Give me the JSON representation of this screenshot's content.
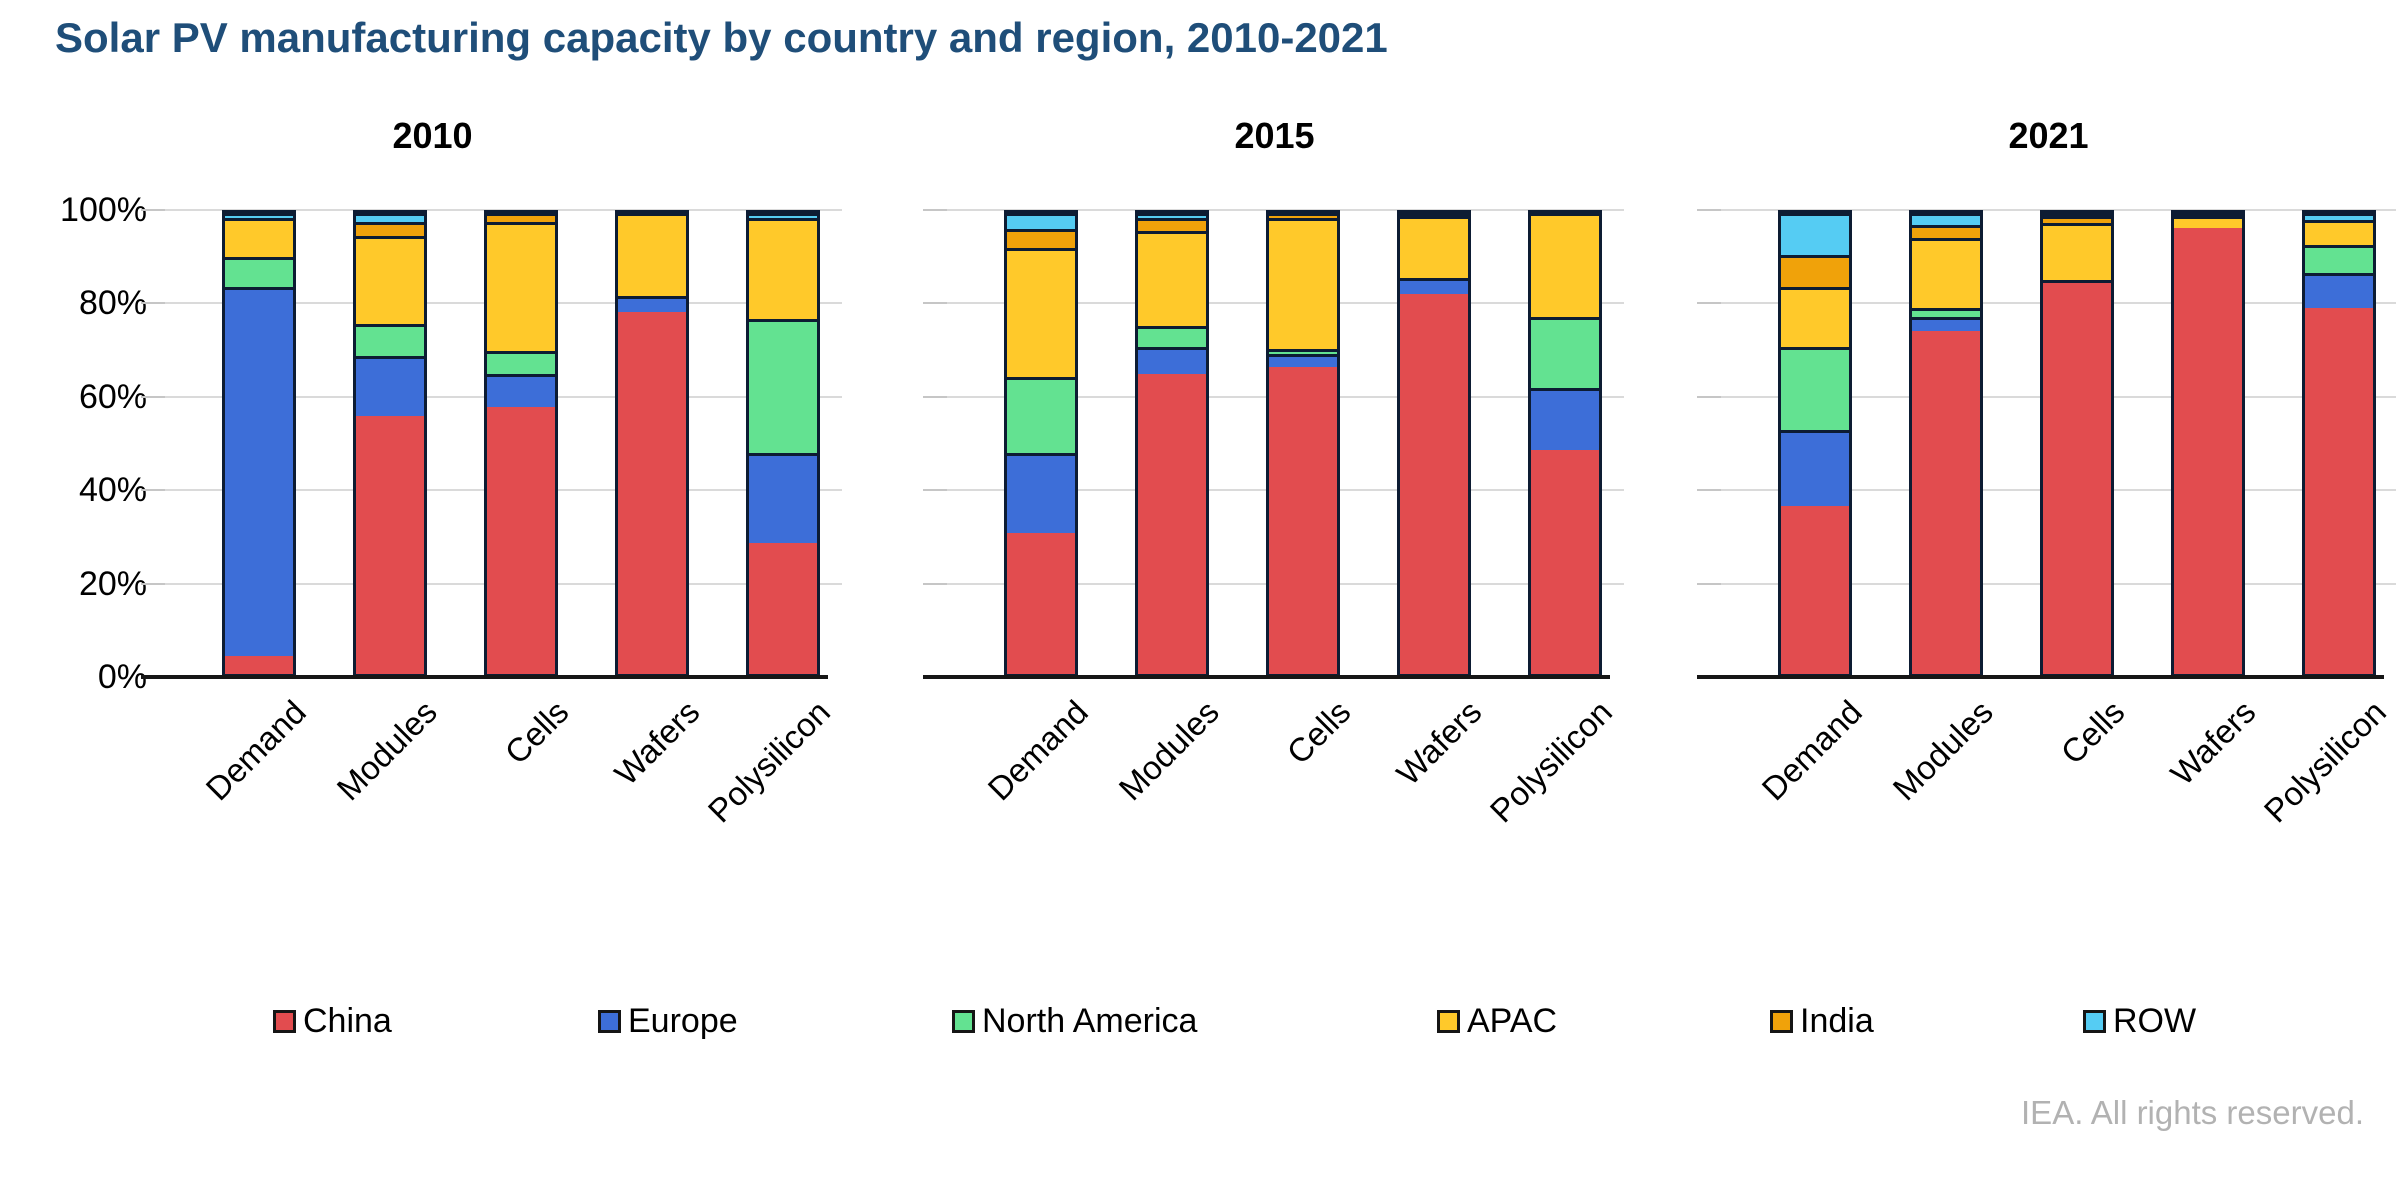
{
  "title": "Solar PV manufacturing capacity by country and region, 2010-2021",
  "attribution": "IEA. All rights reserved.",
  "chart_data": {
    "type": "bar",
    "stacking": "percent",
    "title": "Solar PV manufacturing capacity by country and region, 2010-2021",
    "ylim": [
      0,
      100
    ],
    "grid": true,
    "legend_position": "bottom",
    "y_tick_labels": [
      "100%",
      "80%",
      "60%",
      "40%",
      "20%",
      "0%"
    ],
    "y_tick_values": [
      100,
      80,
      60,
      40,
      20,
      0
    ],
    "categories": [
      "Demand",
      "Modules",
      "Cells",
      "Wafers",
      "Polysilicon"
    ],
    "series_names": [
      "China",
      "Europe",
      "North America",
      "APAC",
      "India",
      "ROW"
    ],
    "series_colors": [
      "#E24C4F",
      "#3D6ED8",
      "#63E291",
      "#FFC92A",
      "#F0A20A",
      "#55CCF3"
    ],
    "panels": [
      {
        "title": "2010",
        "series": [
          {
            "name": "China",
            "values": [
              4,
              56,
              58,
              78.5,
              28.5
            ]
          },
          {
            "name": "Europe",
            "values": [
              80,
              13,
              7,
              3.5,
              19.5
            ]
          },
          {
            "name": "North America",
            "values": [
              6.5,
              7,
              5,
              0,
              29
            ]
          },
          {
            "name": "APAC",
            "values": [
              8.5,
              19,
              28,
              18,
              22
            ]
          },
          {
            "name": "India",
            "values": [
              0,
              3,
              2,
              0,
              0
            ]
          },
          {
            "name": "ROW",
            "values": [
              1,
              2,
              0,
              0,
              1
            ]
          }
        ]
      },
      {
        "title": "2015",
        "series": [
          {
            "name": "China",
            "values": [
              30.5,
              65,
              66.5,
              82.5,
              48.5
            ]
          },
          {
            "name": "Europe",
            "values": [
              17.5,
              6,
              3,
              3.5,
              13.5
            ]
          },
          {
            "name": "North America",
            "values": [
              16.5,
              4.5,
              1,
              0,
              15.5
            ]
          },
          {
            "name": "APAC",
            "values": [
              28,
              20.5,
              28.5,
              13.5,
              22.5
            ]
          },
          {
            "name": "India",
            "values": [
              4,
              3,
              1,
              0.5,
              0
            ]
          },
          {
            "name": "ROW",
            "values": [
              3.5,
              1,
              0,
              0,
              0
            ]
          }
        ]
      },
      {
        "title": "2021",
        "series": [
          {
            "name": "China",
            "values": [
              36.5,
              74.5,
              85,
              97,
              79.5
            ]
          },
          {
            "name": "Europe",
            "values": [
              16.5,
              3,
              0.5,
              0,
              7.5
            ]
          },
          {
            "name": "North America",
            "values": [
              18,
              2,
              0,
              0,
              6
            ]
          },
          {
            "name": "APAC",
            "values": [
              13,
              15,
              12.5,
              2.5,
              5.5
            ]
          },
          {
            "name": "India",
            "values": [
              7,
              3,
              1.5,
              0.5,
              0
            ]
          },
          {
            "name": "ROW",
            "values": [
              9,
              2.5,
              0.5,
              0,
              1.5
            ]
          }
        ]
      }
    ]
  },
  "legend": {
    "items": [
      "China",
      "Europe",
      "North America",
      "APAC",
      "India",
      "ROW"
    ]
  }
}
